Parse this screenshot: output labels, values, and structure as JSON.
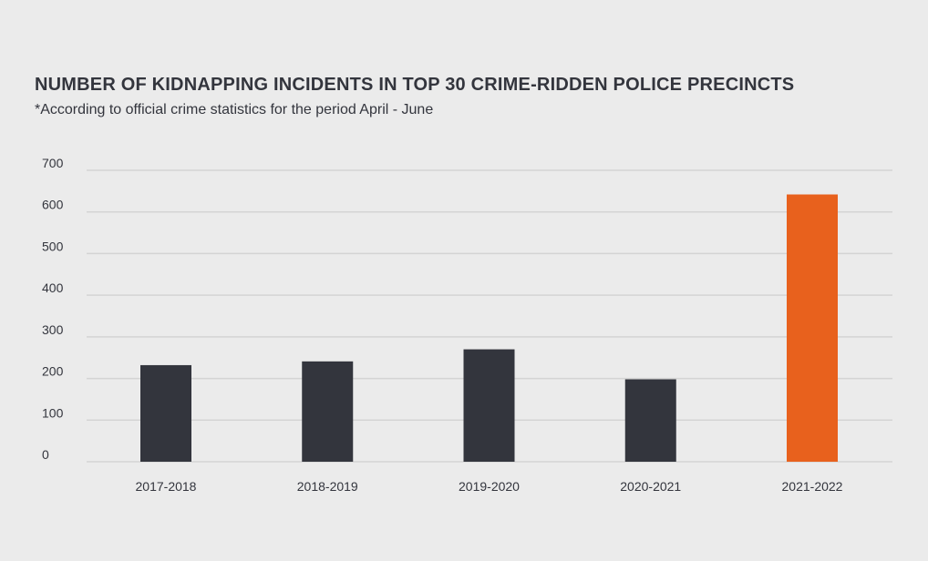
{
  "chart_data": {
    "type": "bar",
    "title": "NUMBER OF KIDNAPPING INCIDENTS IN TOP 30 CRIME-RIDDEN POLICE PRECINCTS",
    "subtitle": "*According to official crime statistics for the period April - June",
    "xlabel": "",
    "ylabel": "",
    "categories": [
      "2017-2018",
      "2018-2019",
      "2019-2020",
      "2020-2021",
      "2021-2022"
    ],
    "values": [
      232,
      241,
      270,
      198,
      642
    ],
    "yticks": [
      "0",
      "100",
      "200",
      "300",
      "400",
      "500",
      "600",
      "700"
    ],
    "ylim": [
      0,
      700
    ],
    "grid": true,
    "colors": {
      "default_bar": "#33353d",
      "highlight_bar": "#e8611d",
      "grid": "#d4d4d4",
      "background": "#ebebeb"
    },
    "highlight_index": 4
  }
}
